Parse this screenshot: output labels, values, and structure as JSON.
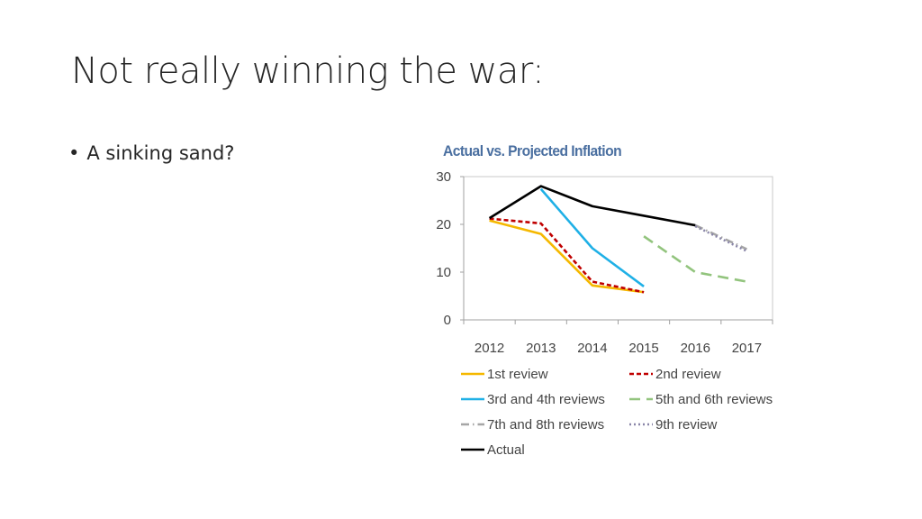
{
  "slide": {
    "title": "Not really winning the war:",
    "bullets": [
      {
        "marker": "•",
        "text": "A sinking sand?"
      }
    ]
  },
  "chart_data": {
    "type": "line",
    "title": "Actual vs. Projected Inflation",
    "xlabel": "",
    "ylabel": "",
    "x_categories": [
      "2012",
      "2013",
      "2014",
      "2015",
      "2016",
      "2017"
    ],
    "ylim": [
      0,
      30
    ],
    "yticks": [
      "0",
      "10",
      "20",
      "30"
    ],
    "grid": false,
    "legend_position": "bottom",
    "series": [
      {
        "name": "1st review",
        "color": "#f5b800",
        "style": "solid",
        "points": [
          [
            "2012",
            20.8
          ],
          [
            "2013",
            18.0
          ],
          [
            "2014",
            7.2
          ],
          [
            "2015",
            5.8
          ]
        ]
      },
      {
        "name": "2nd review",
        "color": "#c00000",
        "style": "dash",
        "points": [
          [
            "2012",
            21.2
          ],
          [
            "2013",
            20.2
          ],
          [
            "2014",
            8.0
          ],
          [
            "2015",
            5.8
          ]
        ]
      },
      {
        "name": "3rd and 4th reviews",
        "color": "#1fb0e6",
        "style": "solid",
        "points": [
          [
            "2013",
            27.4
          ],
          [
            "2014",
            15.0
          ],
          [
            "2015",
            7.0
          ]
        ]
      },
      {
        "name": "5th and 6th reviews",
        "color": "#92c47d",
        "style": "longdash",
        "points": [
          [
            "2015",
            17.5
          ],
          [
            "2016",
            10.0
          ],
          [
            "2017",
            8.0
          ]
        ]
      },
      {
        "name": "7th and 8th reviews",
        "color": "#a6a6a6",
        "style": "dashdot",
        "points": [
          [
            "2016",
            19.8
          ],
          [
            "2017",
            14.8
          ]
        ]
      },
      {
        "name": "9th review",
        "color": "#8a86a8",
        "style": "dot",
        "points": [
          [
            "2016",
            19.6
          ],
          [
            "2017",
            14.4
          ]
        ]
      },
      {
        "name": "Actual",
        "color": "#000000",
        "style": "solid",
        "points": [
          [
            "2012",
            21.3
          ],
          [
            "2013",
            28.0
          ],
          [
            "2014",
            23.8
          ],
          [
            "2015",
            21.8
          ],
          [
            "2016",
            19.8
          ]
        ]
      }
    ]
  }
}
